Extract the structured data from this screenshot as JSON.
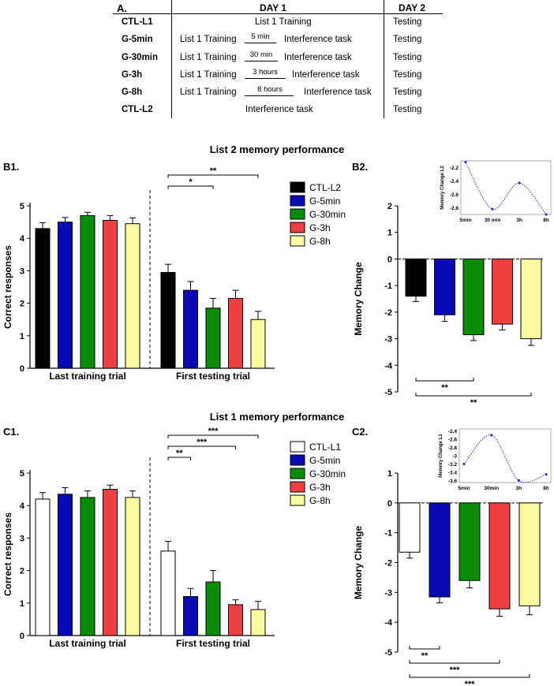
{
  "panel_a": {
    "label": "A.",
    "head_day1": "DAY 1",
    "head_day2": "DAY 2",
    "rows": [
      {
        "group": "CTL-L1",
        "training": "List 1 Training",
        "interval": "",
        "task": "",
        "day2": "Testing"
      },
      {
        "group": "G-5min",
        "training": "List 1 Training",
        "interval": "5 min",
        "task": "Interference task",
        "day2": "Testing"
      },
      {
        "group": "G-30min",
        "training": "List 1 Training",
        "interval": "30 min",
        "task": "Interference task",
        "day2": "Testing"
      },
      {
        "group": "G-3h",
        "training": "List 1 Training",
        "interval": "3 hours",
        "task": "Interference task",
        "day2": "Testing"
      },
      {
        "group": "G-8h",
        "training": "List 1 Training",
        "interval": "8 hours",
        "task": "Interference task",
        "day2": "Testing"
      },
      {
        "group": "CTL-L2",
        "training": "",
        "interval": "",
        "task": "Interference task",
        "day2": "Testing"
      }
    ]
  },
  "section_titles": {
    "b": "List 2 memory performance",
    "c": "List 1 memory performance"
  },
  "chart_data": [
    {
      "id": "B1",
      "type": "bar",
      "panel_label": "B1.",
      "ylabel": "Correct responses",
      "ylim": [
        0,
        5
      ],
      "yticks": [
        0,
        1,
        2,
        3,
        4,
        5
      ],
      "groups": [
        "Last training trial",
        "First testing trial"
      ],
      "series": [
        {
          "name": "CTL-L2",
          "color": "#000000",
          "values": [
            4.3,
            2.95
          ],
          "errors": [
            0.18,
            0.25
          ]
        },
        {
          "name": "G-5min",
          "color": "#0a0ab4",
          "values": [
            4.5,
            2.4
          ],
          "errors": [
            0.14,
            0.27
          ]
        },
        {
          "name": "G-30min",
          "color": "#0a8c0a",
          "values": [
            4.7,
            1.85
          ],
          "errors": [
            0.1,
            0.3
          ]
        },
        {
          "name": "G-3h",
          "color": "#ee4040",
          "values": [
            4.55,
            2.15
          ],
          "errors": [
            0.15,
            0.25
          ]
        },
        {
          "name": "G-8h",
          "color": "#fafaa0",
          "values": [
            4.45,
            1.5
          ],
          "errors": [
            0.18,
            0.25
          ]
        }
      ],
      "significance": [
        {
          "from": "CTL-L2",
          "to": "G-30min",
          "label": "*"
        },
        {
          "from": "CTL-L2",
          "to": "G-8h",
          "label": "**"
        }
      ]
    },
    {
      "id": "B2",
      "type": "bar",
      "panel_label": "B2.",
      "ylabel": "Memory Change",
      "ylim": [
        -5,
        2
      ],
      "yticks": [
        -5,
        -4,
        -3,
        -2,
        -1,
        0,
        1,
        2
      ],
      "categories": [
        "CTL-L2",
        "G-5min",
        "G-30min",
        "G-3h",
        "G-8h"
      ],
      "values": [
        -1.4,
        -2.1,
        -2.85,
        -2.45,
        -3.0
      ],
      "errors": [
        0.2,
        0.25,
        0.22,
        0.22,
        0.25
      ],
      "significance": [
        {
          "from": "CTL-L2",
          "to": "G-30min",
          "label": "**"
        },
        {
          "from": "CTL-L2",
          "to": "G-8h",
          "label": "**"
        }
      ],
      "inset": {
        "type": "line",
        "ylabel": "Memory Change L2",
        "x_labels": [
          "5min",
          "30 min",
          "3h",
          "8h"
        ],
        "yticks": [
          -2.2,
          -2.4,
          -2.6,
          -2.8
        ],
        "ylim": [
          -2.9,
          -2.1
        ],
        "points": [
          -2.12,
          -2.82,
          -2.43,
          -2.9
        ]
      }
    },
    {
      "id": "C1",
      "type": "bar",
      "panel_label": "C1.",
      "ylabel": "Correct responses",
      "ylim": [
        0,
        5
      ],
      "yticks": [
        0,
        1,
        2,
        3,
        4,
        5
      ],
      "groups": [
        "Last training trial",
        "First testing trial"
      ],
      "series": [
        {
          "name": "CTL-L1",
          "color": "#ffffff",
          "values": [
            4.2,
            2.6
          ],
          "errors": [
            0.2,
            0.3
          ]
        },
        {
          "name": "G-5min",
          "color": "#0a0ab4",
          "values": [
            4.35,
            1.2
          ],
          "errors": [
            0.2,
            0.25
          ]
        },
        {
          "name": "G-30min",
          "color": "#0a8c0a",
          "values": [
            4.25,
            1.65
          ],
          "errors": [
            0.2,
            0.35
          ]
        },
        {
          "name": "G-3h",
          "color": "#ee4040",
          "values": [
            4.5,
            0.95
          ],
          "errors": [
            0.13,
            0.15
          ]
        },
        {
          "name": "G-8h",
          "color": "#fafaa0",
          "values": [
            4.25,
            0.8
          ],
          "errors": [
            0.2,
            0.25
          ]
        }
      ],
      "significance": [
        {
          "from": "CTL-L1",
          "to": "G-5min",
          "label": "**"
        },
        {
          "from": "CTL-L1",
          "to": "G-3h",
          "label": "***"
        },
        {
          "from": "CTL-L1",
          "to": "G-8h",
          "label": "***"
        }
      ]
    },
    {
      "id": "C2",
      "type": "bar",
      "panel_label": "C2.",
      "ylabel": "Memory Change",
      "ylim": [
        -5,
        1
      ],
      "yticks": [
        -5,
        -4,
        -3,
        -2,
        -1,
        0,
        1
      ],
      "categories": [
        "CTL-L1",
        "G-5min",
        "G-30min",
        "G-3h",
        "G-8h"
      ],
      "values": [
        -1.65,
        -3.15,
        -2.6,
        -3.55,
        -3.45
      ],
      "errors": [
        0.2,
        0.2,
        0.25,
        0.25,
        0.3
      ],
      "significance": [
        {
          "from": "CTL-L1",
          "to": "G-5min",
          "label": "**"
        },
        {
          "from": "CTL-L1",
          "to": "G-3h",
          "label": "***"
        },
        {
          "from": "CTL-L1",
          "to": "G-8h",
          "label": "***"
        }
      ],
      "inset": {
        "type": "line",
        "ylabel": "Memory Change L1",
        "x_labels": [
          "5min",
          "30min",
          "3h",
          "8h"
        ],
        "yticks": [
          -2.4,
          -2.6,
          -2.8,
          -3.0,
          -3.2,
          -3.4,
          -3.6
        ],
        "ylim": [
          -3.65,
          -2.35
        ],
        "points": [
          -3.2,
          -2.5,
          -3.6,
          -3.45
        ]
      }
    }
  ]
}
